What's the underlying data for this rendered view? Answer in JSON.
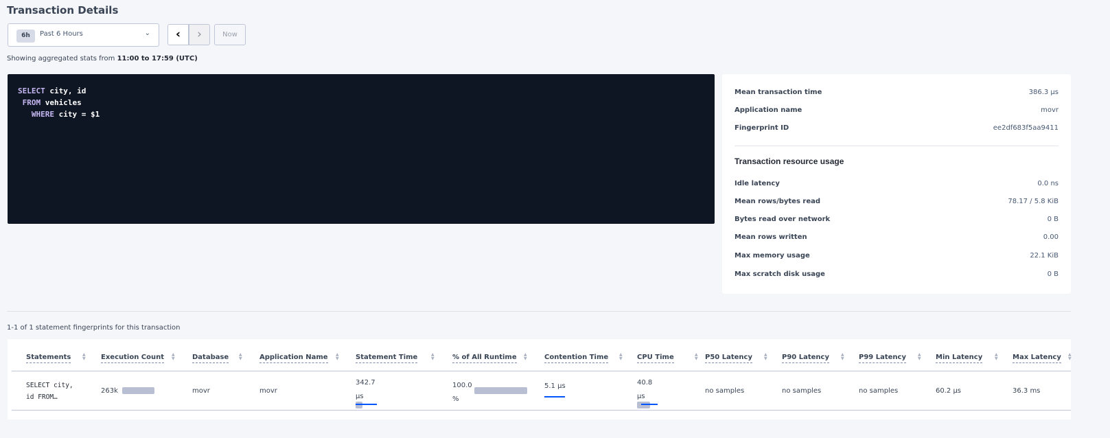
{
  "header": {
    "title": "Transaction Details"
  },
  "time_range": {
    "badge": "6h",
    "label": "Past 6 Hours",
    "prev_icon": "chevron-left",
    "next_icon": "chevron-right",
    "now_label": "Now"
  },
  "showing": {
    "prefix": "Showing aggregated stats from ",
    "range": "11:00 to 17:59 (UTC)"
  },
  "sql": {
    "line1_kw": "SELECT",
    "line1": " city, id",
    "line2_kw": "FROM",
    "line2": " vehicles",
    "line3_kw": "WHERE",
    "line3": " city = $1"
  },
  "summary": [
    {
      "label": "Mean transaction time",
      "value": "386.3 µs"
    },
    {
      "label": "Application name",
      "value": "movr"
    },
    {
      "label": "Fingerprint ID",
      "value": "ee2df683f5aa9411"
    }
  ],
  "resource": {
    "title": "Transaction resource usage",
    "items": [
      {
        "label": "Idle latency",
        "value": "0.0 ns"
      },
      {
        "label": "Mean rows/bytes read",
        "value": "78.17 / 5.8 KiB"
      },
      {
        "label": "Bytes read over network",
        "value": "0 B"
      },
      {
        "label": "Mean rows written",
        "value": "0.00"
      },
      {
        "label": "Max memory usage",
        "value": "22.1 KiB"
      },
      {
        "label": "Max scratch disk usage",
        "value": "0 B"
      }
    ]
  },
  "table": {
    "caption": "1-1 of 1 statement fingerprints for this transaction",
    "columns": [
      "Statements",
      "Execution Count",
      "Database",
      "Application Name",
      "Statement Time",
      "% of All Runtime",
      "Contention Time",
      "CPU Time",
      "P50 Latency",
      "P90 Latency",
      "P99 Latency",
      "Min Latency",
      "Max Latency"
    ],
    "rows": [
      {
        "statement_l1": "SELECT city,",
        "statement_l2": "id FROM…",
        "execution_count": "263k",
        "database": "movr",
        "application_name": "movr",
        "statement_time_l1": "342.7",
        "statement_time_l2": "µs",
        "pct_runtime_l1": "100.0",
        "pct_runtime_l2": "%",
        "contention_time": "5.1 µs",
        "cpu_time_l1": "40.8",
        "cpu_time_l2": "µs",
        "p50": "no samples",
        "p90": "no samples",
        "p99": "no samples",
        "min_latency": "60.2 µs",
        "max_latency": "36.3 ms"
      }
    ]
  },
  "colors": {
    "background": "#f5f6fa",
    "code_bg": "#0f1623",
    "keyword": "#c5b7f2",
    "bar_gray": "#b8bfd3",
    "bar_blue": "#0055ff"
  }
}
